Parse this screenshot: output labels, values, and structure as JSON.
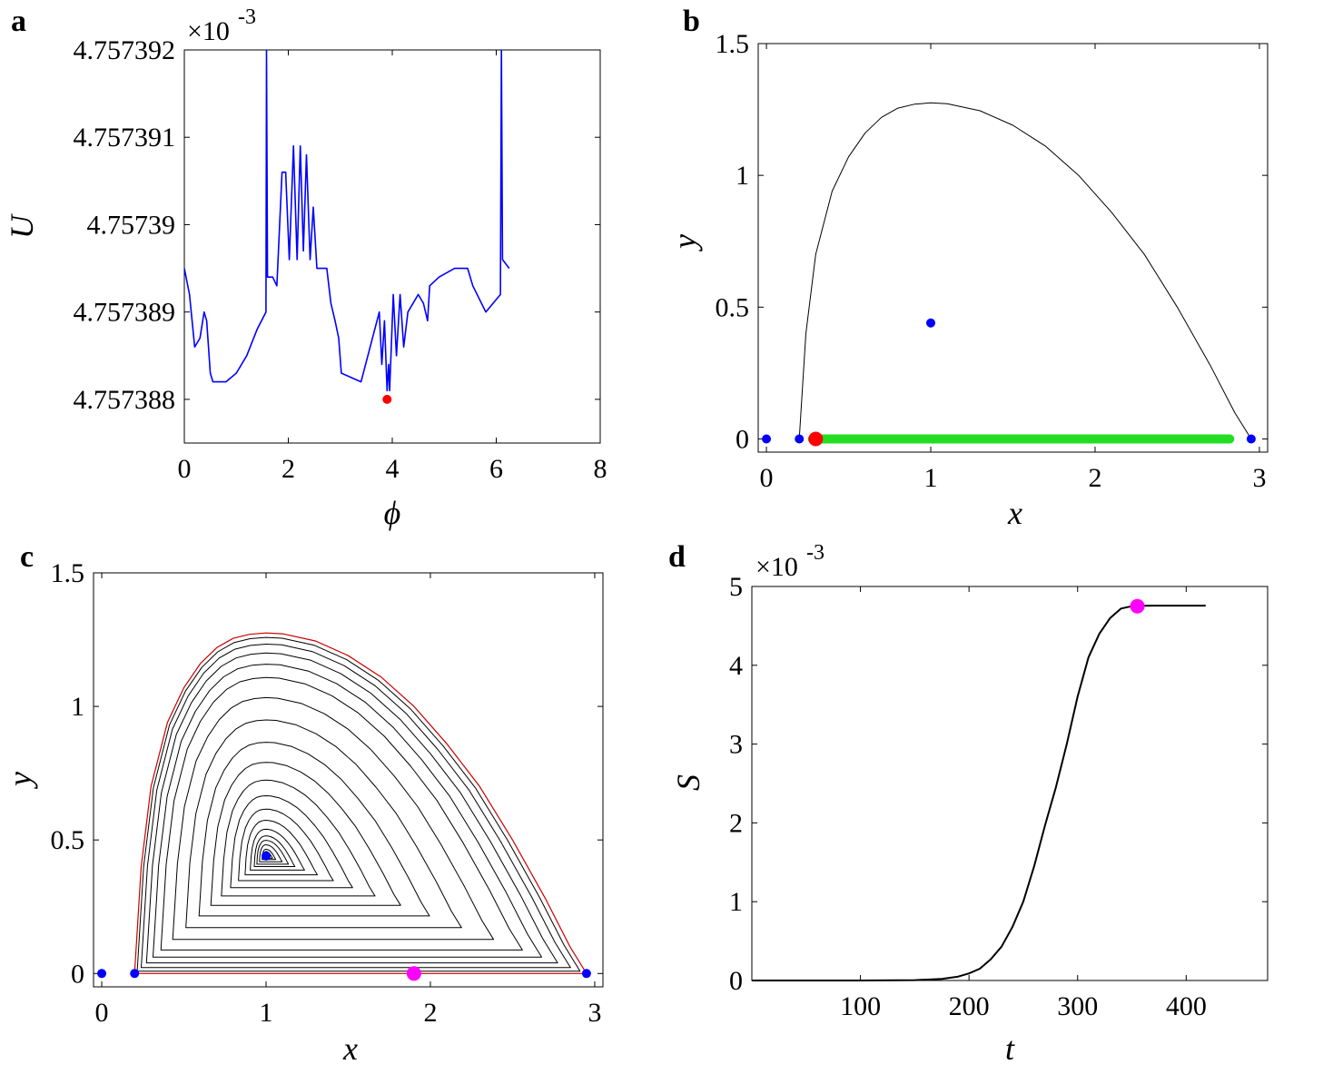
{
  "colors": {
    "curve_blue": "#0000ff",
    "curve_black": "#000000",
    "marker_blue": "#0000ff",
    "marker_red": "#ff0000",
    "segment_green": "#22dd22",
    "marker_magenta": "#ff00ff",
    "boundary_red": "#cc0000"
  },
  "chart_data": [
    {
      "id": "a",
      "type": "line",
      "panel_label": "a",
      "xlabel": "ϕ",
      "ylabel": "U",
      "exponent_label": "×10",
      "exponent_power": "-3",
      "xlim": [
        0,
        8
      ],
      "ylim": [
        4.7573875,
        4.757392
      ],
      "xticks": [
        0,
        2,
        4,
        6,
        8
      ],
      "xtick_labels": [
        "0",
        "2",
        "4",
        "6",
        "8"
      ],
      "yticks": [
        4.757388,
        4.757389,
        4.75739,
        4.757391,
        4.757392
      ],
      "ytick_labels": [
        "4.757388",
        "4.757389",
        "4.75739",
        "4.757391",
        "4.757392"
      ],
      "series": [
        {
          "x": [
            0,
            0.1,
            0.2,
            0.3,
            0.38,
            0.43,
            0.5,
            0.55,
            0.65,
            0.8,
            1.0,
            1.2,
            1.4,
            1.57,
            1.58,
            1.6,
            1.7,
            1.78,
            1.88,
            1.95,
            2.02,
            2.1,
            2.17,
            2.23,
            2.29,
            2.35,
            2.42,
            2.48,
            2.55,
            2.62,
            2.68,
            2.74,
            2.82,
            2.9,
            2.97,
            3.02,
            3.4,
            3.75,
            3.8,
            3.85,
            3.9,
            3.93,
            3.95,
            4.02,
            4.08,
            4.15,
            4.22,
            4.3,
            4.5,
            4.6,
            4.68,
            4.72,
            4.9,
            5.2,
            5.45,
            5.55,
            5.8,
            6.08,
            6.1,
            6.12,
            6.25
          ],
          "y": [
            4.7573895,
            4.7573892,
            4.7573886,
            4.7573887,
            4.757389,
            4.7573889,
            4.7573883,
            4.7573882,
            4.7573882,
            4.7573882,
            4.7573883,
            4.7573885,
            4.7573888,
            4.757389,
            4.757392,
            4.7573894,
            4.7573894,
            4.7573893,
            4.7573906,
            4.7573906,
            4.7573896,
            4.7573909,
            4.7573896,
            4.7573909,
            4.7573897,
            4.7573908,
            4.7573896,
            4.7573902,
            4.7573895,
            4.7573895,
            4.7573895,
            4.7573895,
            4.7573891,
            4.7573889,
            4.7573887,
            4.7573883,
            4.7573882,
            4.757389,
            4.7573884,
            4.7573889,
            4.7573881,
            4.7573884,
            4.7573881,
            4.7573892,
            4.7573885,
            4.7573892,
            4.7573886,
            4.757389,
            4.7573892,
            4.7573891,
            4.7573889,
            4.7573893,
            4.7573894,
            4.7573895,
            4.7573895,
            4.7573893,
            4.757389,
            4.7573892,
            4.757392,
            4.7573896,
            4.7573895
          ]
        }
      ],
      "markers": [
        {
          "x": 3.9,
          "y": 4.757388,
          "color": "red"
        }
      ]
    },
    {
      "id": "b",
      "type": "line",
      "panel_label": "b",
      "xlabel": "x",
      "ylabel": "y",
      "xlim": [
        -0.05,
        3.05
      ],
      "ylim": [
        -0.05,
        1.5
      ],
      "xticks": [
        0,
        1,
        2,
        3
      ],
      "xtick_labels": [
        "0",
        "1",
        "2",
        "3"
      ],
      "yticks": [
        0,
        0.5,
        1,
        1.5
      ],
      "ytick_labels": [
        "0",
        "0.5",
        "1",
        "1.5"
      ],
      "boundary_curve": {
        "x": [
          0.2,
          0.24,
          0.3,
          0.4,
          0.5,
          0.6,
          0.7,
          0.8,
          0.9,
          1.0,
          1.1,
          1.3,
          1.5,
          1.7,
          1.9,
          2.1,
          2.3,
          2.5,
          2.7,
          2.85,
          2.95
        ],
        "y": [
          0,
          0.4,
          0.7,
          0.94,
          1.07,
          1.16,
          1.22,
          1.255,
          1.27,
          1.275,
          1.272,
          1.245,
          1.19,
          1.11,
          1.0,
          0.86,
          0.7,
          0.5,
          0.28,
          0.1,
          0
        ]
      },
      "segment": {
        "x_start": 0.28,
        "x_end": 2.82,
        "y": 0
      },
      "markers": [
        {
          "x": 0,
          "y": 0,
          "color": "blue"
        },
        {
          "x": 0.2,
          "y": 0,
          "color": "blue"
        },
        {
          "x": 2.95,
          "y": 0,
          "color": "blue"
        },
        {
          "x": 1.0,
          "y": 0.44,
          "color": "blue"
        },
        {
          "x": 0.3,
          "y": 0,
          "color": "red"
        }
      ]
    },
    {
      "id": "c",
      "type": "line",
      "panel_label": "c",
      "xlabel": "x",
      "ylabel": "y",
      "xlim": [
        -0.05,
        3.05
      ],
      "ylim": [
        -0.05,
        1.5
      ],
      "xticks": [
        0,
        1,
        2,
        3
      ],
      "xtick_labels": [
        "0",
        "1",
        "2",
        "3"
      ],
      "yticks": [
        0,
        0.5,
        1,
        1.5
      ],
      "ytick_labels": [
        "0",
        "0.5",
        "1",
        "1.5"
      ],
      "center": {
        "x": 1.0,
        "y": 0.44
      },
      "orbit_levels": [
        0.01,
        0.02,
        0.03,
        0.05,
        0.07,
        0.09,
        0.12,
        0.16,
        0.21,
        0.27,
        0.34,
        0.42,
        0.51,
        0.61,
        0.71,
        0.8,
        0.86,
        0.91,
        0.95,
        0.98
      ],
      "markers": [
        {
          "x": 0,
          "y": 0,
          "color": "blue"
        },
        {
          "x": 0.2,
          "y": 0,
          "color": "blue"
        },
        {
          "x": 2.95,
          "y": 0,
          "color": "blue"
        },
        {
          "x": 1.0,
          "y": 0.44,
          "color": "blue"
        },
        {
          "x": 1.9,
          "y": 0,
          "color": "magenta"
        }
      ]
    },
    {
      "id": "d",
      "type": "line",
      "panel_label": "d",
      "xlabel": "t",
      "ylabel": "S",
      "exponent_label": "×10",
      "exponent_power": "-3",
      "xlim": [
        0,
        475
      ],
      "ylim": [
        0,
        5
      ],
      "xticks": [
        100,
        200,
        300,
        400
      ],
      "xtick_labels": [
        "100",
        "200",
        "300",
        "400"
      ],
      "yticks": [
        0,
        1,
        2,
        3,
        4,
        5
      ],
      "ytick_labels": [
        "0",
        "1",
        "2",
        "3",
        "4",
        "5"
      ],
      "series": [
        {
          "x": [
            0,
            100,
            150,
            175,
            190,
            200,
            210,
            220,
            230,
            240,
            250,
            260,
            270,
            280,
            290,
            300,
            305,
            310,
            315,
            320,
            330,
            340,
            350,
            360,
            370,
            380,
            390,
            400,
            410,
            418
          ],
          "y": [
            0,
            0,
            0.005,
            0.02,
            0.05,
            0.09,
            0.15,
            0.27,
            0.43,
            0.68,
            1.0,
            1.45,
            1.97,
            2.45,
            3.0,
            3.6,
            3.85,
            4.1,
            4.25,
            4.4,
            4.6,
            4.72,
            4.75,
            4.755,
            4.757,
            4.757,
            4.757,
            4.757,
            4.757,
            4.757
          ]
        }
      ],
      "markers": [
        {
          "x": 355,
          "y": 4.75,
          "color": "magenta"
        }
      ]
    }
  ]
}
